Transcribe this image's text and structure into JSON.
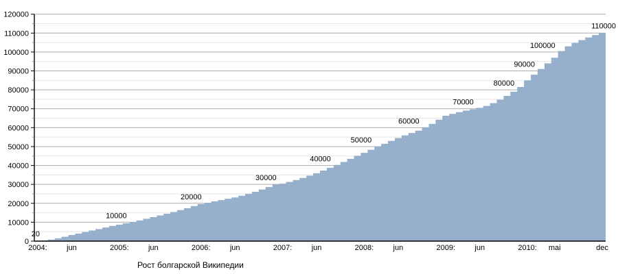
{
  "chart_data": {
    "type": "area",
    "title": "Рост болгарской Википедии",
    "x_start": "2004-01",
    "x_end": "2010-12",
    "x_unit": "month",
    "ylim": [
      0,
      120000
    ],
    "y_major_step": 10000,
    "y_minor_step": 5000,
    "grid": {
      "horizontal_major": true,
      "horizontal_minor": true,
      "vertical": false
    },
    "legend_position": "none",
    "y_tick_labels": [
      "0",
      "10000",
      "20000",
      "30000",
      "40000",
      "50000",
      "60000",
      "70000",
      "80000",
      "90000",
      "100000",
      "110000",
      "120000"
    ],
    "x_ticks": [
      {
        "month_index": 0,
        "label": "2004:"
      },
      {
        "month_index": 5,
        "label": "jun"
      },
      {
        "month_index": 12,
        "label": "2005:"
      },
      {
        "month_index": 17,
        "label": "jun"
      },
      {
        "month_index": 24,
        "label": "2006:"
      },
      {
        "month_index": 29,
        "label": "jun"
      },
      {
        "month_index": 36,
        "label": "2007:"
      },
      {
        "month_index": 41,
        "label": "jun"
      },
      {
        "month_index": 48,
        "label": "2008:"
      },
      {
        "month_index": 53,
        "label": "jun"
      },
      {
        "month_index": 60,
        "label": "2009:"
      },
      {
        "month_index": 65,
        "label": "jun"
      },
      {
        "month_index": 72,
        "label": "2010:"
      },
      {
        "month_index": 76,
        "label": "mai"
      },
      {
        "month_index": 83,
        "label": "dec"
      }
    ],
    "values_monthly": [
      20,
      300,
      800,
      1500,
      2300,
      3200,
      4000,
      4800,
      5600,
      6400,
      7200,
      8000,
      8700,
      9400,
      10100,
      10900,
      11800,
      12700,
      13600,
      14500,
      15400,
      16400,
      17400,
      18500,
      19600,
      20300,
      21000,
      21700,
      22400,
      23100,
      24000,
      25000,
      26100,
      27300,
      28600,
      29900,
      30400,
      31300,
      32300,
      33400,
      34600,
      35900,
      37300,
      38800,
      40300,
      41900,
      43500,
      45100,
      46700,
      48300,
      50000,
      51500,
      53000,
      54500,
      55900,
      57200,
      58400,
      60200,
      62000,
      64200,
      66300,
      67300,
      68200,
      69000,
      69700,
      70500,
      71500,
      73000,
      74800,
      76800,
      79000,
      81500,
      85000,
      88000,
      91000,
      94000,
      97000,
      100500,
      103000,
      104800,
      106300,
      107700,
      109000,
      110000
    ],
    "milestone_labels": [
      {
        "label": "20",
        "month_index": 0,
        "value": 20
      },
      {
        "label": "10000",
        "month_index": 14,
        "value": 10000
      },
      {
        "label": "20000",
        "month_index": 25,
        "value": 20000
      },
      {
        "label": "30000",
        "month_index": 36,
        "value": 30000
      },
      {
        "label": "40000",
        "month_index": 44,
        "value": 40000
      },
      {
        "label": "50000",
        "month_index": 50,
        "value": 50000
      },
      {
        "label": "60000",
        "month_index": 57,
        "value": 60000
      },
      {
        "label": "70000",
        "month_index": 65,
        "value": 70000
      },
      {
        "label": "80000",
        "month_index": 71,
        "value": 80000
      },
      {
        "label": "90000",
        "month_index": 74,
        "value": 90000
      },
      {
        "label": "100000",
        "month_index": 77,
        "value": 100000
      },
      {
        "label": "110000",
        "month_index": 83,
        "value": 110000
      }
    ],
    "colors": {
      "area_fill": "#96b0cb",
      "grid_major": "#ababab",
      "grid_minor": "#e5e5e5",
      "axis": "#000000",
      "text": "#000000",
      "background": "#ffffff"
    }
  }
}
